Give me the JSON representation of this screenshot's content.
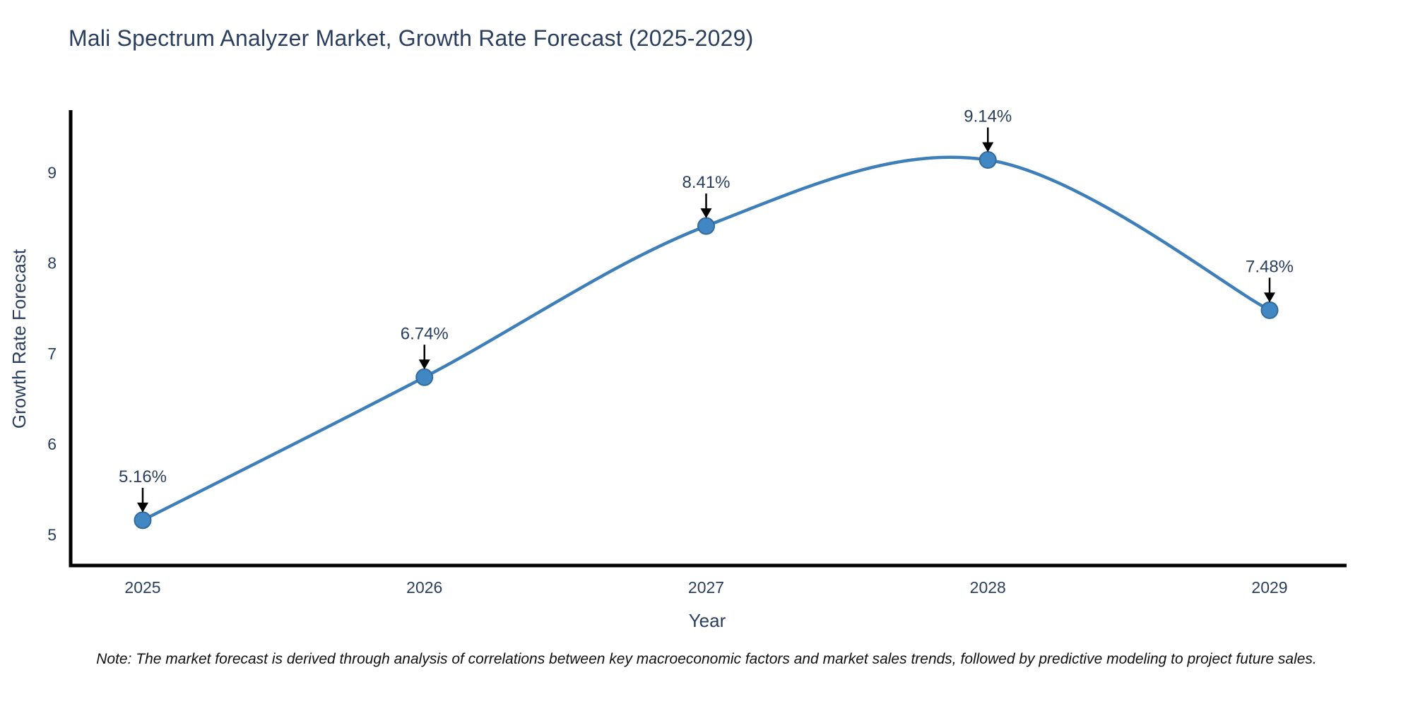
{
  "title": "Mali Spectrum Analyzer Market, Growth Rate Forecast (2025-2029)",
  "note": "Note: The market forecast is derived through analysis of correlations between key macroeconomic factors and market sales trends, followed by predictive modeling to project future sales.",
  "chart_data": {
    "type": "line",
    "line_shape": "spline",
    "title": "Mali Spectrum Analyzer Market, Growth Rate Forecast (2025-2029)",
    "xlabel": "Year",
    "ylabel": "Growth Rate Forecast",
    "categories": [
      "2025",
      "2026",
      "2027",
      "2028",
      "2029"
    ],
    "values": [
      5.16,
      6.74,
      8.41,
      9.14,
      7.48
    ],
    "point_labels": [
      "5.16%",
      "6.74%",
      "8.41%",
      "9.14%",
      "7.48%"
    ],
    "yticks": [
      5,
      6,
      7,
      8,
      9
    ],
    "ylim": [
      4.66,
      9.69
    ],
    "grid": false,
    "legend_position": "none",
    "annotations_have_arrows": true,
    "colors": {
      "line": "#3e7fba",
      "marker_fill": "#4187c4",
      "marker_edge": "#336b9b",
      "axis": "#000000",
      "text": "#2a3f5f",
      "arrow": "#000000",
      "background": "#ffffff"
    }
  }
}
